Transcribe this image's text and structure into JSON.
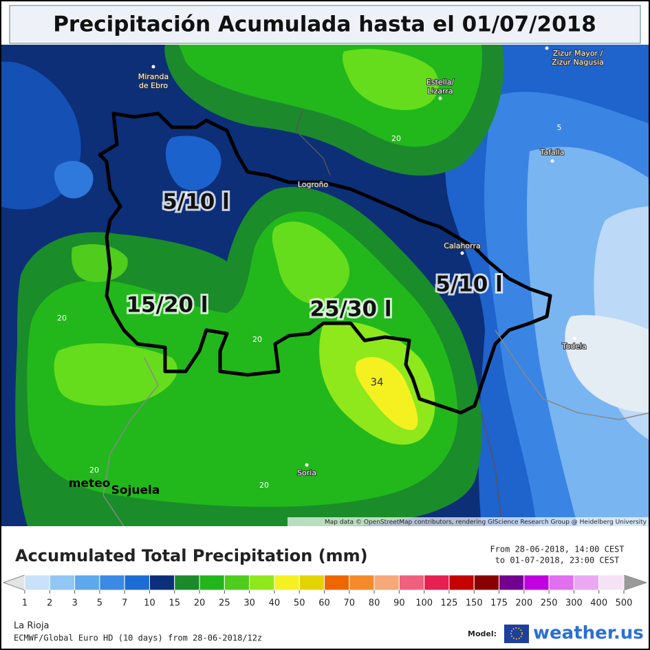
{
  "title": "Precipitación Acumulada hasta el 01/07/2018",
  "map": {
    "places": [
      {
        "lines": [
          "Miranda",
          "de Ebro"
        ]
      },
      {
        "lines": [
          "Estella/",
          "Lizarra"
        ]
      },
      {
        "lines": [
          "Zizur Mayor /",
          "Zizur Nagusia"
        ]
      },
      {
        "lines": [
          "Tafalla"
        ]
      },
      {
        "lines": [
          "Logroño"
        ]
      },
      {
        "lines": [
          "Calahorra"
        ]
      },
      {
        "lines": [
          "Tudela"
        ]
      },
      {
        "lines": [
          "Soria"
        ]
      }
    ],
    "contour_labels": [
      "20",
      "20",
      "20",
      "20",
      "20",
      "5",
      "34"
    ],
    "region_labels": [
      "5/10 l",
      "15/20 l",
      "25/30 l",
      "5/10 l"
    ],
    "watermark": [
      "meteo",
      "Sojuela"
    ],
    "attribution": "Map data © OpenStreetMap contributors, rendering GIScience Research Group @ Heidelberg University"
  },
  "legend": {
    "title": "Accumulated Total Precipitation (mm)",
    "period": [
      "From 28-06-2018, 14:00 CEST",
      "to 01-07-2018, 23:00 CEST"
    ],
    "ticks": [
      1,
      2,
      3,
      5,
      7,
      10,
      15,
      20,
      25,
      30,
      40,
      50,
      60,
      70,
      80,
      90,
      100,
      125,
      150,
      175,
      200,
      250,
      300,
      400,
      500
    ],
    "colors": [
      "#c8e2fa",
      "#92c6f5",
      "#5ea8ee",
      "#3a8ae6",
      "#1c6cd6",
      "#0b2f7a",
      "#1b8a2a",
      "#22b51c",
      "#4fcc1c",
      "#8ee81c",
      "#f5f020",
      "#e3d400",
      "#ee6600",
      "#f58a2a",
      "#f6a878",
      "#f0607e",
      "#e62050",
      "#c40000",
      "#8a0000",
      "#720090",
      "#c000e0",
      "#e070f0",
      "#eaa8f2",
      "#f6e2f6"
    ]
  },
  "footer": {
    "region": "La Rioja",
    "model_run": "ECMWF/Global Euro HD (10 days) from 28-06-2018/12z",
    "model_label": "Model:",
    "brand": "weather.us"
  }
}
